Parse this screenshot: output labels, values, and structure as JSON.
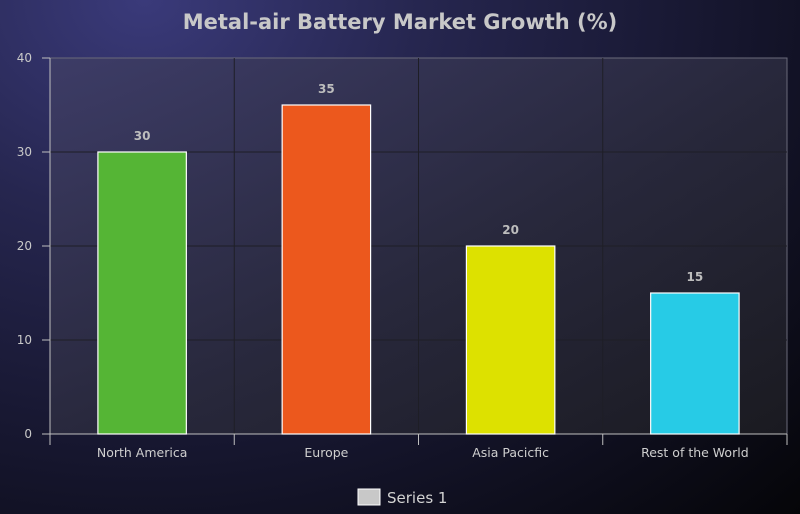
{
  "chart_data": {
    "type": "bar",
    "title": "Metal-air Battery Market Growth (%)",
    "categories": [
      "North America",
      "Europe",
      "Asia Pacicfic",
      "Rest of the World"
    ],
    "series": [
      {
        "name": "Series 1",
        "values": [
          30,
          35,
          20,
          15
        ],
        "colors": [
          "#55b535",
          "#ec581d",
          "#dde100",
          "#27cbe6"
        ]
      }
    ],
    "ylim": [
      0,
      40
    ],
    "yticks": [
      0,
      10,
      20,
      30,
      40
    ],
    "grid": true,
    "legend": "bottom-center",
    "legend_swatch_color": "#c8c8c8"
  }
}
